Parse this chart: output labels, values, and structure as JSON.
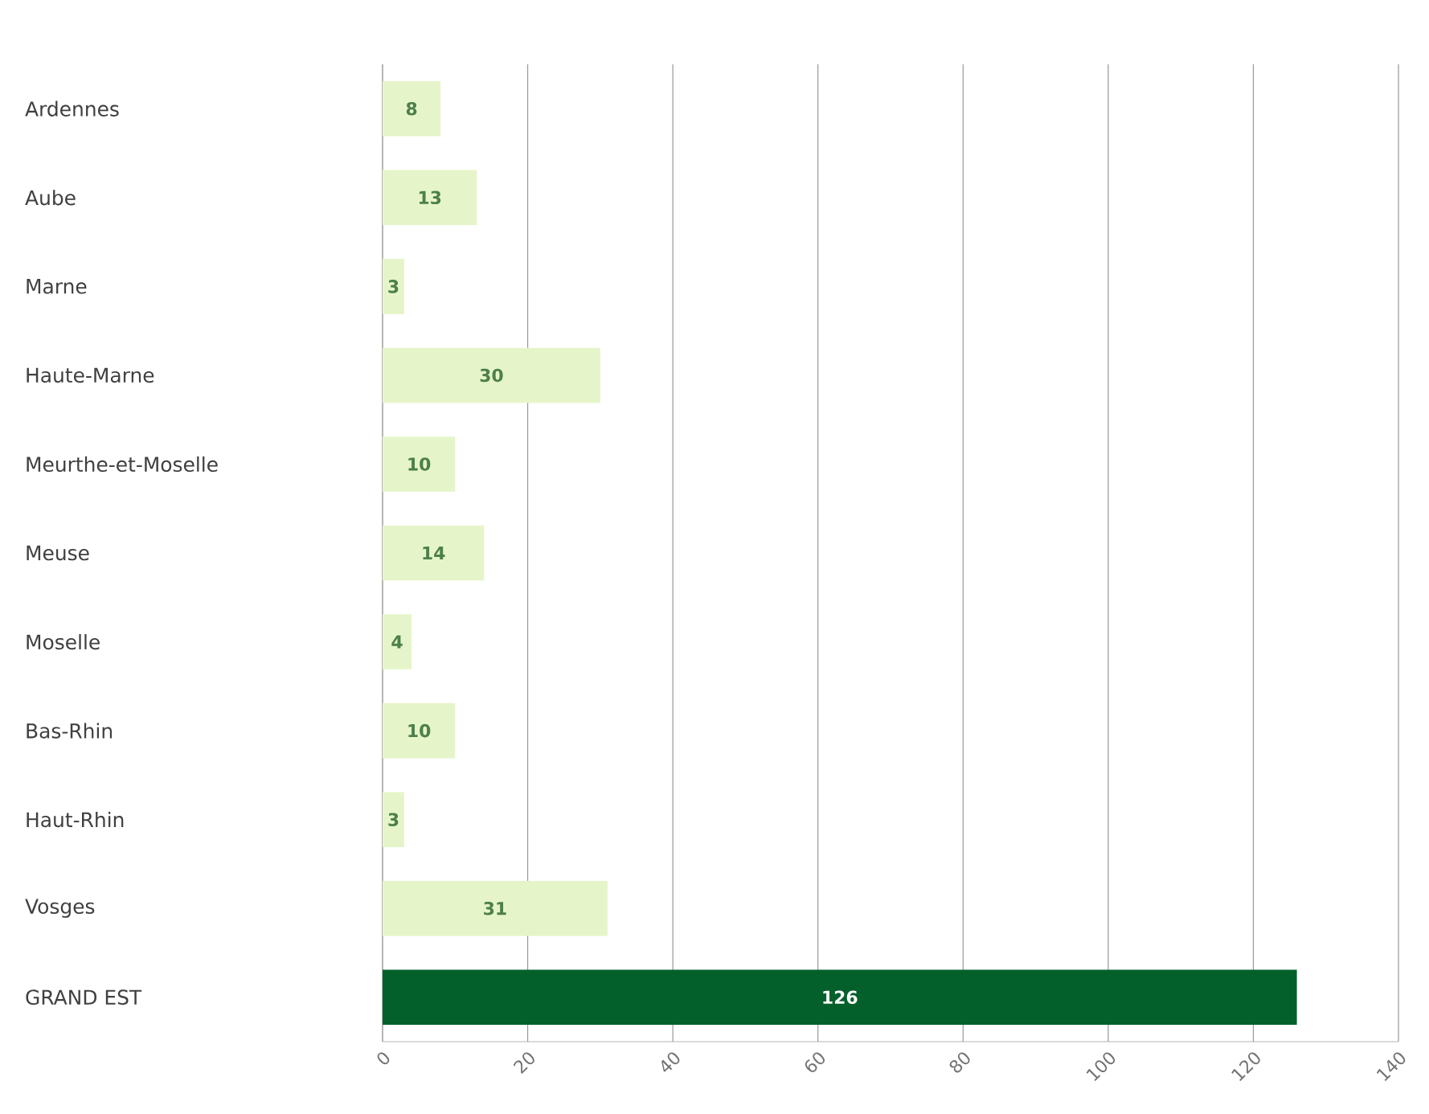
{
  "chart_data": {
    "type": "bar",
    "orientation": "horizontal",
    "categories": [
      "Ardennes",
      "Aube",
      "Marne",
      "Haute-Marne",
      "Meurthe-et-Moselle",
      "Meuse",
      "Moselle",
      "Bas-Rhin",
      "Haut-Rhin",
      "Vosges",
      "GRAND EST"
    ],
    "values": [
      8,
      13,
      3,
      30,
      10,
      14,
      4,
      10,
      3,
      31,
      126
    ],
    "colors": [
      "#e6f5c9",
      "#e6f5c9",
      "#e6f5c9",
      "#e6f5c9",
      "#e6f5c9",
      "#e6f5c9",
      "#e6f5c9",
      "#e6f5c9",
      "#e6f5c9",
      "#e6f5c9",
      "#04602b"
    ],
    "xlim": [
      0,
      140
    ],
    "xticks": [
      0,
      20,
      40,
      60,
      80,
      100,
      120,
      140
    ],
    "grid": "x",
    "data_labels": true
  }
}
